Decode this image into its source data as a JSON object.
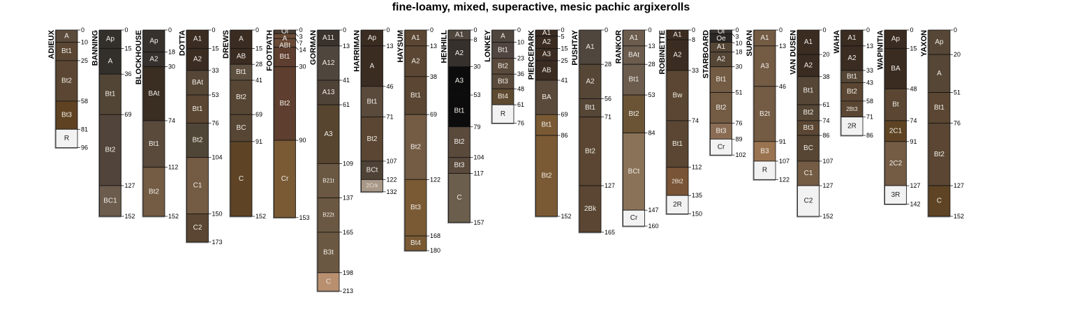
{
  "title": "fine-loamy, mixed, superactive, mesic pachic argixerolls",
  "profiles": [
    {
      "name": "ADIEUX",
      "horizons": [
        {
          "name": "A",
          "top": 0,
          "bottom": 10,
          "color": "#5b4b3b"
        },
        {
          "name": "Bt1",
          "top": 10,
          "bottom": 25,
          "color": "#5a4632"
        },
        {
          "name": "Bt2",
          "top": 25,
          "bottom": 58,
          "color": "#5a4632"
        },
        {
          "name": "Bt3",
          "top": 58,
          "bottom": 81,
          "color": "#5e4222"
        },
        {
          "name": "R",
          "top": 81,
          "bottom": 96,
          "color": "#f2f2f2"
        }
      ]
    },
    {
      "name": "BANNING",
      "horizons": [
        {
          "name": "Ap",
          "top": 0,
          "bottom": 15,
          "color": "#33302c"
        },
        {
          "name": "A",
          "top": 15,
          "bottom": 36,
          "color": "#33302c"
        },
        {
          "name": "Bt1",
          "top": 36,
          "bottom": 69,
          "color": "#534536"
        },
        {
          "name": "Bt2",
          "top": 69,
          "bottom": 127,
          "color": "#51443a"
        },
        {
          "name": "BC1",
          "top": 127,
          "bottom": 152,
          "color": "#6b5c4e"
        }
      ]
    },
    {
      "name": "BLOCKHOUSE",
      "horizons": [
        {
          "name": "Ap",
          "top": 0,
          "bottom": 18,
          "color": "#36312c"
        },
        {
          "name": "A2",
          "top": 18,
          "bottom": 30,
          "color": "#36312c"
        },
        {
          "name": "BAt",
          "top": 30,
          "bottom": 74,
          "color": "#3a2d22"
        },
        {
          "name": "Bt1",
          "top": 74,
          "bottom": 112,
          "color": "#5a4a3c"
        },
        {
          "name": "Bt2",
          "top": 112,
          "bottom": 152,
          "color": "#735b44"
        }
      ]
    },
    {
      "name": "DOTTA",
      "horizons": [
        {
          "name": "A1",
          "top": 0,
          "bottom": 15,
          "color": "#3b2c22"
        },
        {
          "name": "A2",
          "top": 15,
          "bottom": 33,
          "color": "#3b2c22"
        },
        {
          "name": "BAt",
          "top": 33,
          "bottom": 53,
          "color": "#554636"
        },
        {
          "name": "Bt1",
          "top": 53,
          "bottom": 76,
          "color": "#5a4632"
        },
        {
          "name": "Bt2",
          "top": 76,
          "bottom": 104,
          "color": "#504637"
        },
        {
          "name": "C1",
          "top": 104,
          "bottom": 150,
          "color": "#735b44"
        },
        {
          "name": "C2",
          "top": 150,
          "bottom": 173,
          "color": "#5a4632"
        }
      ]
    },
    {
      "name": "DREWS",
      "horizons": [
        {
          "name": "A",
          "top": 0,
          "bottom": 15,
          "color": "#3b2c22"
        },
        {
          "name": "AB",
          "top": 15,
          "bottom": 28,
          "color": "#3b2c22"
        },
        {
          "name": "Bt1",
          "top": 28,
          "bottom": 41,
          "color": "#5e5040"
        },
        {
          "name": "Bt2",
          "top": 41,
          "bottom": 69,
          "color": "#574634"
        },
        {
          "name": "BC",
          "top": 69,
          "bottom": 91,
          "color": "#574634"
        },
        {
          "name": "C",
          "top": 91,
          "bottom": 152,
          "color": "#5e4424"
        }
      ]
    },
    {
      "name": "FOOTPATH",
      "horizons": [
        {
          "name": "Oi",
          "top": 0,
          "bottom": 3,
          "color": "#4a3c32"
        },
        {
          "name": "A",
          "top": 3,
          "bottom": 7,
          "color": "#6a4a36"
        },
        {
          "name": "ABt",
          "top": 7,
          "bottom": 14,
          "color": "#6a4a36"
        },
        {
          "name": "Bt1",
          "top": 14,
          "bottom": 30,
          "color": "#5e3e2e"
        },
        {
          "name": "Bt2",
          "top": 30,
          "bottom": 90,
          "color": "#5e3e2e"
        },
        {
          "name": "Cr",
          "top": 90,
          "bottom": 153,
          "color": "#7a5a34"
        }
      ]
    },
    {
      "name": "GORMAN",
      "horizons": [
        {
          "name": "A11",
          "top": 0,
          "bottom": 13,
          "color": "#3a322c"
        },
        {
          "name": "A12",
          "top": 13,
          "bottom": 41,
          "color": "#4f463e"
        },
        {
          "name": "A13",
          "top": 41,
          "bottom": 61,
          "color": "#4f4236"
        },
        {
          "name": "A3",
          "top": 61,
          "bottom": 109,
          "color": "#57452f"
        },
        {
          "name": "B21t",
          "top": 109,
          "bottom": 137,
          "color": "#6b5842"
        },
        {
          "name": "B22t",
          "top": 137,
          "bottom": 165,
          "color": "#6b5842"
        },
        {
          "name": "B3t",
          "top": 165,
          "bottom": 198,
          "color": "#6b5842"
        },
        {
          "name": "C",
          "top": 198,
          "bottom": 213,
          "color": "#b89070"
        }
      ]
    },
    {
      "name": "HARRIMAN",
      "horizons": [
        {
          "name": "Ap",
          "top": 0,
          "bottom": 13,
          "color": "#3b2c22"
        },
        {
          "name": "A",
          "top": 13,
          "bottom": 46,
          "color": "#3b2c22"
        },
        {
          "name": "Bt1",
          "top": 46,
          "bottom": 71,
          "color": "#5a4a3c"
        },
        {
          "name": "Bt2",
          "top": 71,
          "bottom": 107,
          "color": "#5a4632"
        },
        {
          "name": "BCt",
          "top": 107,
          "bottom": 122,
          "color": "#4f4236"
        },
        {
          "name": "2Crk",
          "top": 122,
          "bottom": 132,
          "color": "#a89888"
        }
      ]
    },
    {
      "name": "HAYSUM",
      "horizons": [
        {
          "name": "A1",
          "top": 0,
          "bottom": 13,
          "color": "#5a4632"
        },
        {
          "name": "A2",
          "top": 13,
          "bottom": 38,
          "color": "#5a4632"
        },
        {
          "name": "Bt1",
          "top": 38,
          "bottom": 69,
          "color": "#5a4632"
        },
        {
          "name": "Bt2",
          "top": 69,
          "bottom": 122,
          "color": "#735b44"
        },
        {
          "name": "Bt3",
          "top": 122,
          "bottom": 168,
          "color": "#7a5a34"
        },
        {
          "name": "Bt4",
          "top": 168,
          "bottom": 180,
          "color": "#7a5a34"
        }
      ]
    },
    {
      "name": "HENHILL",
      "horizons": [
        {
          "name": "A1",
          "top": 0,
          "bottom": 8,
          "color": "#4f463e"
        },
        {
          "name": "A2",
          "top": 8,
          "bottom": 30,
          "color": "#36302c"
        },
        {
          "name": "A3",
          "top": 30,
          "bottom": 53,
          "color": "#0c0c0c"
        },
        {
          "name": "Bt1",
          "top": 53,
          "bottom": 79,
          "color": "#0c0c0c"
        },
        {
          "name": "Bt2",
          "top": 79,
          "bottom": 104,
          "color": "#5a4a3c"
        },
        {
          "name": "Bt3",
          "top": 104,
          "bottom": 117,
          "color": "#5a4a3c"
        },
        {
          "name": "C",
          "top": 117,
          "bottom": 157,
          "color": "#6b5e4c"
        }
      ]
    },
    {
      "name": "LONKEY",
      "horizons": [
        {
          "name": "A",
          "top": 0,
          "bottom": 10,
          "color": "#4f463e"
        },
        {
          "name": "Bt1",
          "top": 10,
          "bottom": 23,
          "color": "#504540"
        },
        {
          "name": "Bt2",
          "top": 23,
          "bottom": 36,
          "color": "#5a4a3c"
        },
        {
          "name": "Bt3",
          "top": 36,
          "bottom": 48,
          "color": "#5a4a3c"
        },
        {
          "name": "Bt4",
          "top": 48,
          "bottom": 61,
          "color": "#5e4a30"
        },
        {
          "name": "R",
          "top": 61,
          "bottom": 76,
          "color": "#f2f2f2"
        }
      ]
    },
    {
      "name": "PIERCEPARK",
      "horizons": [
        {
          "name": "A1",
          "top": 0,
          "bottom": 5,
          "color": "#3b2c22"
        },
        {
          "name": "A2",
          "top": 5,
          "bottom": 15,
          "color": "#3b2c22"
        },
        {
          "name": "A3",
          "top": 15,
          "bottom": 25,
          "color": "#3b2c22"
        },
        {
          "name": "AB",
          "top": 25,
          "bottom": 41,
          "color": "#3b2c22"
        },
        {
          "name": "BA",
          "top": 41,
          "bottom": 69,
          "color": "#5a4a3c"
        },
        {
          "name": "Bt1",
          "top": 69,
          "bottom": 86,
          "color": "#7a5a34"
        },
        {
          "name": "Bt2",
          "top": 86,
          "bottom": 152,
          "color": "#7a5a34"
        }
      ]
    },
    {
      "name": "PUSHTAY",
      "horizons": [
        {
          "name": "A1",
          "top": 0,
          "bottom": 28,
          "color": "#4f463e"
        },
        {
          "name": "A2",
          "top": 28,
          "bottom": 56,
          "color": "#554636"
        },
        {
          "name": "Bt1",
          "top": 56,
          "bottom": 71,
          "color": "#554636"
        },
        {
          "name": "Bt2",
          "top": 71,
          "bottom": 127,
          "color": "#5a4632"
        },
        {
          "name": "2Bk",
          "top": 127,
          "bottom": 165,
          "color": "#5a4632"
        }
      ]
    },
    {
      "name": "RANKOR",
      "horizons": [
        {
          "name": "A1",
          "top": 0,
          "bottom": 13,
          "color": "#6b5c4e"
        },
        {
          "name": "BAt",
          "top": 13,
          "bottom": 28,
          "color": "#6b5c4e"
        },
        {
          "name": "Bt1",
          "top": 28,
          "bottom": 53,
          "color": "#6b5c4e"
        },
        {
          "name": "Bt2",
          "top": 53,
          "bottom": 84,
          "color": "#6b5436"
        },
        {
          "name": "BCt",
          "top": 84,
          "bottom": 147,
          "color": "#8a7258"
        },
        {
          "name": "Cr",
          "top": 147,
          "bottom": 160,
          "color": "#f2f2f2"
        }
      ]
    },
    {
      "name": "ROBINETTE",
      "horizons": [
        {
          "name": "A1",
          "top": 0,
          "bottom": 8,
          "color": "#3b2c22"
        },
        {
          "name": "A2",
          "top": 8,
          "bottom": 33,
          "color": "#3b2c22"
        },
        {
          "name": "Bw",
          "top": 33,
          "bottom": 74,
          "color": "#5a4632"
        },
        {
          "name": "Bt1",
          "top": 74,
          "bottom": 112,
          "color": "#5a4632"
        },
        {
          "name": "2Bt2",
          "top": 112,
          "bottom": 135,
          "color": "#7a5436"
        },
        {
          "name": "2R",
          "top": 135,
          "bottom": 150,
          "color": "#f2f2f2"
        }
      ]
    },
    {
      "name": "STARBOARD",
      "horizons": [
        {
          "name": "Oi",
          "top": 0,
          "bottom": 3,
          "color": "#3a3430"
        },
        {
          "name": "Oe",
          "top": 3,
          "bottom": 10,
          "color": "#2c2826"
        },
        {
          "name": "A1",
          "top": 10,
          "bottom": 18,
          "color": "#554636"
        },
        {
          "name": "A2",
          "top": 18,
          "bottom": 30,
          "color": "#554636"
        },
        {
          "name": "Bt1",
          "top": 30,
          "bottom": 51,
          "color": "#735b44"
        },
        {
          "name": "Bt2",
          "top": 51,
          "bottom": 76,
          "color": "#735b44"
        },
        {
          "name": "Bt3",
          "top": 76,
          "bottom": 89,
          "color": "#8a6c54"
        },
        {
          "name": "Cr",
          "top": 89,
          "bottom": 102,
          "color": "#f2f2f2"
        }
      ]
    },
    {
      "name": "SUPAN",
      "horizons": [
        {
          "name": "A1",
          "top": 0,
          "bottom": 13,
          "color": "#735b44"
        },
        {
          "name": "A3",
          "top": 13,
          "bottom": 46,
          "color": "#735b44"
        },
        {
          "name": "B2t",
          "top": 46,
          "bottom": 91,
          "color": "#735b44"
        },
        {
          "name": "B3",
          "top": 91,
          "bottom": 107,
          "color": "#9a7450"
        },
        {
          "name": "R",
          "top": 107,
          "bottom": 122,
          "color": "#f2f2f2"
        }
      ]
    },
    {
      "name": "VAN DUSEN",
      "horizons": [
        {
          "name": "A1",
          "top": 0,
          "bottom": 20,
          "color": "#3b2c22"
        },
        {
          "name": "A2",
          "top": 20,
          "bottom": 38,
          "color": "#3b2c22"
        },
        {
          "name": "Bt1",
          "top": 38,
          "bottom": 61,
          "color": "#554636"
        },
        {
          "name": "Bt2",
          "top": 61,
          "bottom": 74,
          "color": "#554636"
        },
        {
          "name": "Bt3",
          "top": 74,
          "bottom": 86,
          "color": "#5a4632"
        },
        {
          "name": "BC",
          "top": 86,
          "bottom": 107,
          "color": "#574634"
        },
        {
          "name": "C1",
          "top": 107,
          "bottom": 127,
          "color": "#735b44"
        },
        {
          "name": "C2",
          "top": 127,
          "bottom": 152,
          "color": "#f2f2f2"
        }
      ]
    },
    {
      "name": "WAHA",
      "horizons": [
        {
          "name": "A1",
          "top": 0,
          "bottom": 13,
          "color": "#3b2c22"
        },
        {
          "name": "A2",
          "top": 13,
          "bottom": 33,
          "color": "#3b2c22"
        },
        {
          "name": "Bt1",
          "top": 33,
          "bottom": 43,
          "color": "#554636"
        },
        {
          "name": "Bt2",
          "top": 43,
          "bottom": 58,
          "color": "#5a4632"
        },
        {
          "name": "2Bt3",
          "top": 58,
          "bottom": 71,
          "color": "#5a4632"
        },
        {
          "name": "2R",
          "top": 71,
          "bottom": 86,
          "color": "#f2f2f2"
        }
      ]
    },
    {
      "name": "WAPINITIA",
      "horizons": [
        {
          "name": "Ap",
          "top": 0,
          "bottom": 15,
          "color": "#3b2c22"
        },
        {
          "name": "BA",
          "top": 15,
          "bottom": 48,
          "color": "#3b2c22"
        },
        {
          "name": "Bt",
          "top": 48,
          "bottom": 74,
          "color": "#5a4632"
        },
        {
          "name": "2C1",
          "top": 74,
          "bottom": 91,
          "color": "#5e4424"
        },
        {
          "name": "2C2",
          "top": 91,
          "bottom": 127,
          "color": "#735b44"
        },
        {
          "name": "3R",
          "top": 127,
          "bottom": 142,
          "color": "#f2f2f2"
        }
      ]
    },
    {
      "name": "YAXON",
      "horizons": [
        {
          "name": "Ap",
          "top": 0,
          "bottom": 20,
          "color": "#554636"
        },
        {
          "name": "A",
          "top": 20,
          "bottom": 51,
          "color": "#554636"
        },
        {
          "name": "Bt1",
          "top": 51,
          "bottom": 76,
          "color": "#5a4632"
        },
        {
          "name": "Bt2",
          "top": 76,
          "bottom": 127,
          "color": "#5a4632"
        },
        {
          "name": "C",
          "top": 127,
          "bottom": 152,
          "color": "#5e4424"
        }
      ]
    }
  ]
}
